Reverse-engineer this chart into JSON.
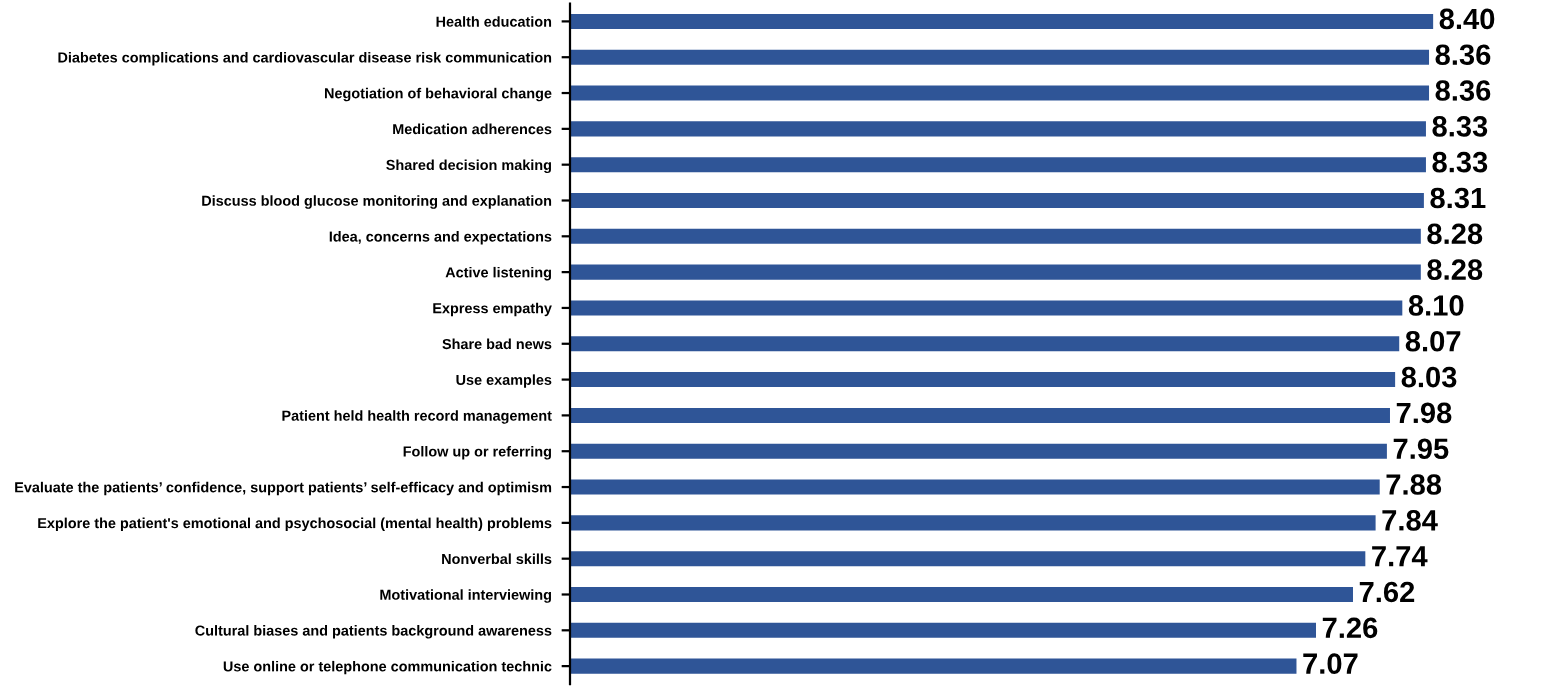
{
  "chart_data": {
    "type": "bar",
    "orientation": "horizontal",
    "categories": [
      "Health education",
      "Diabetes complications and cardiovascular disease risk communication",
      "Negotiation of behavioral change",
      "Medication adherences",
      "Shared decision making",
      "Discuss blood glucose monitoring and explanation",
      "Idea, concerns and expectations",
      "Active listening",
      "Express empathy",
      "Share bad news",
      "Use examples",
      "Patient held health record management",
      "Follow up or referring",
      "Evaluate the patients’ confidence, support patients’ self-efficacy and optimism",
      "Explore the patient's emotional and psychosocial (mental health) problems",
      "Nonverbal skills",
      "Motivational interviewing",
      "Cultural biases and patients background awareness",
      "Use online or telephone communication technic"
    ],
    "values": [
      8.4,
      8.36,
      8.36,
      8.33,
      8.33,
      8.31,
      8.28,
      8.28,
      8.1,
      8.07,
      8.03,
      7.98,
      7.95,
      7.88,
      7.84,
      7.74,
      7.62,
      7.26,
      7.07
    ],
    "value_labels": [
      "8.40",
      "8.36",
      "8.36",
      "8.33",
      "8.33",
      "8.31",
      "8.28",
      "8.28",
      "8.10",
      "8.07",
      "8.03",
      "7.98",
      "7.95",
      "7.88",
      "7.84",
      "7.74",
      "7.62",
      "7.26",
      "7.07"
    ],
    "color": "#2f5597",
    "tick_labels": "y",
    "grid": false,
    "legend": false
  }
}
